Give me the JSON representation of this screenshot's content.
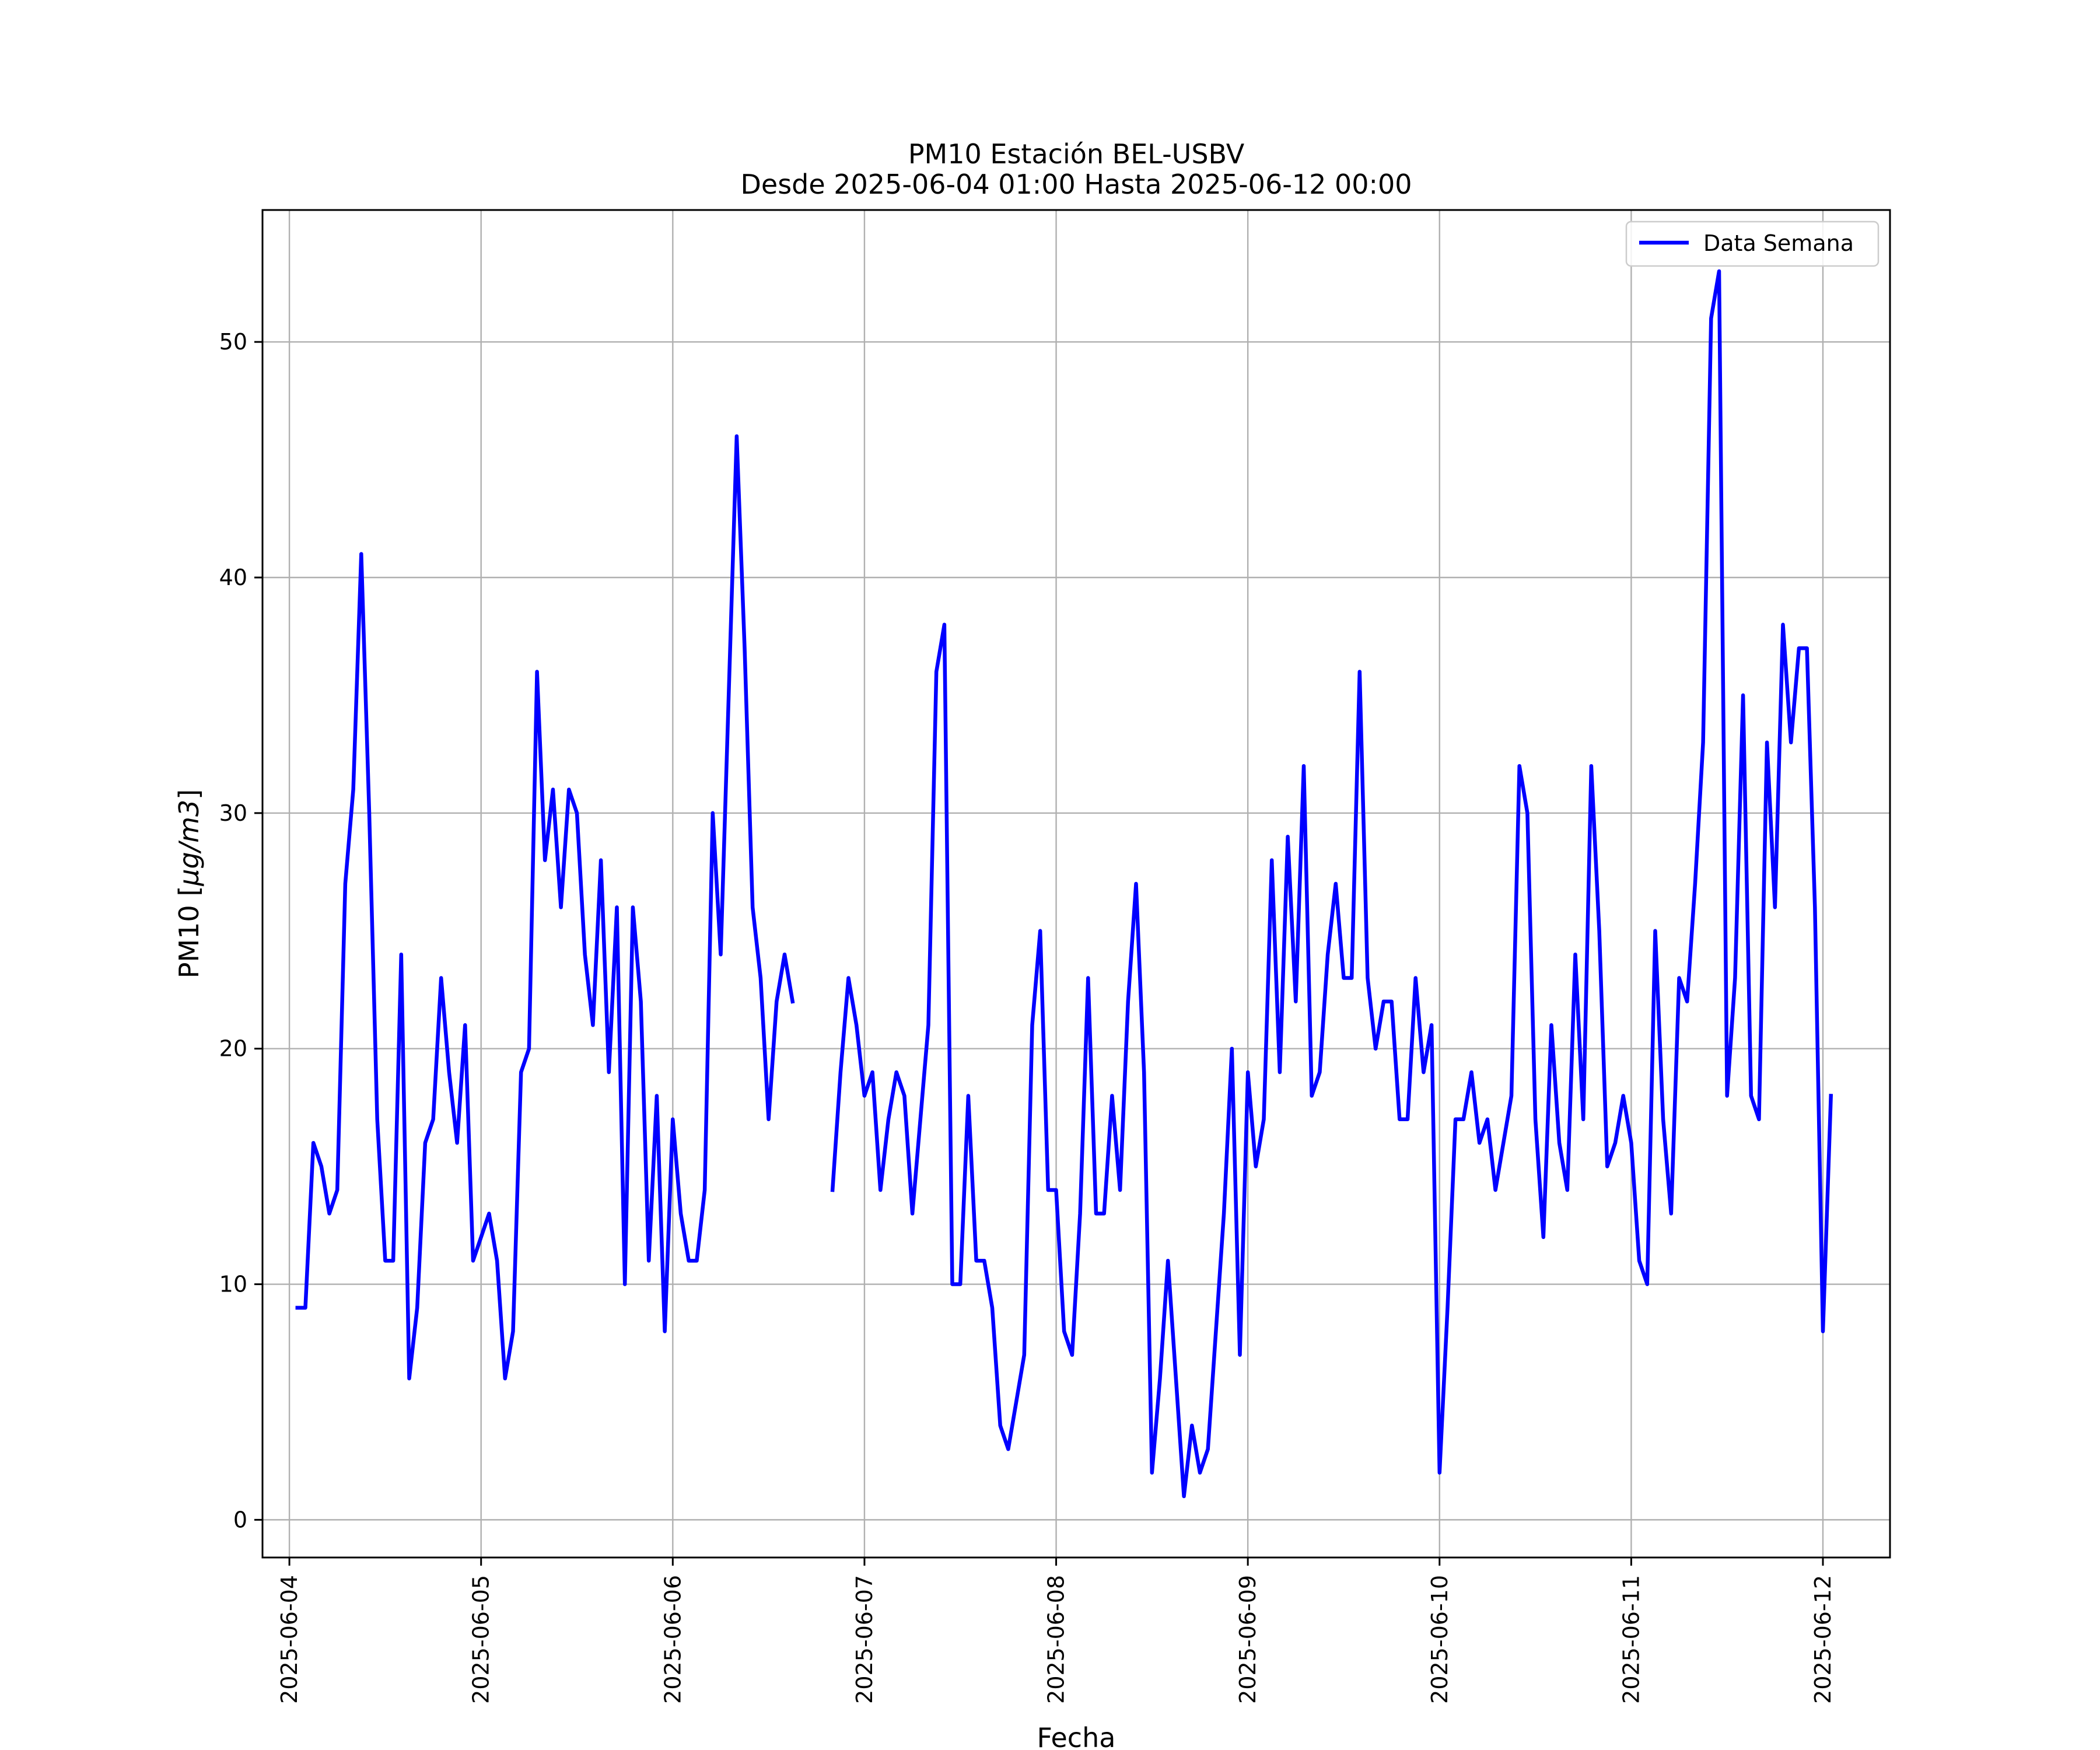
{
  "chart_data": {
    "type": "line",
    "title": "PM10 Estación BEL-USBV",
    "subtitle": "Desde 2025-06-04 01:00 Hasta 2025-06-12 00:00",
    "xlabel": "Fecha",
    "ylabel_prefix": "PM10 [",
    "ylabel_unit": "μg/m3",
    "ylabel_suffix": "]",
    "x_start": "2025-06-04 00:00",
    "x_step_hours": 1,
    "xlim": [
      "2025-06-03 20:38",
      "2025-06-12 08:24"
    ],
    "ylim": [
      -1.6,
      55.6
    ],
    "x_ticks": [
      "2025-06-04",
      "2025-06-05",
      "2025-06-06",
      "2025-06-07",
      "2025-06-08",
      "2025-06-09",
      "2025-06-10",
      "2025-06-11",
      "2025-06-12"
    ],
    "y_ticks": [
      0,
      10,
      20,
      30,
      40,
      50
    ],
    "grid": true,
    "legend": "upper right",
    "color": "#0000ff",
    "series": [
      {
        "name": "Data Semana",
        "values": [
          null,
          9,
          9,
          16,
          15,
          13,
          14,
          27,
          31,
          41,
          30,
          17,
          11,
          11,
          24,
          6,
          9,
          16,
          17,
          23,
          19,
          16,
          21,
          11,
          12,
          13,
          11,
          6,
          8,
          19,
          20,
          36,
          28,
          31,
          26,
          31,
          30,
          24,
          21,
          28,
          19,
          26,
          10,
          26,
          22,
          11,
          18,
          8,
          17,
          13,
          11,
          11,
          14,
          30,
          24,
          35,
          46,
          37,
          26,
          23,
          17,
          22,
          24,
          22,
          null,
          null,
          null,
          null,
          14,
          19,
          23,
          21,
          18,
          19,
          14,
          17,
          19,
          18,
          13,
          17,
          21,
          36,
          38,
          10,
          10,
          18,
          11,
          11,
          9,
          4,
          3,
          5,
          7,
          21,
          25,
          14,
          14,
          8,
          7,
          13,
          23,
          13,
          13,
          18,
          14,
          22,
          27,
          19,
          2,
          6,
          11,
          6,
          1,
          4,
          2,
          3,
          8,
          13,
          20,
          7,
          19,
          15,
          17,
          28,
          19,
          29,
          22,
          32,
          18,
          19,
          24,
          27,
          23,
          23,
          36,
          23,
          20,
          22,
          22,
          17,
          17,
          23,
          19,
          21,
          2,
          9,
          17,
          17,
          19,
          16,
          17,
          14,
          16,
          18,
          32,
          30,
          17,
          12,
          21,
          16,
          14,
          24,
          17,
          32,
          25,
          15,
          16,
          18,
          16,
          11,
          10,
          25,
          17,
          13,
          23,
          22,
          27,
          33,
          51,
          53,
          18,
          23,
          35,
          18,
          17,
          33,
          26,
          38,
          33,
          37,
          37,
          26,
          8,
          18
        ]
      }
    ]
  }
}
